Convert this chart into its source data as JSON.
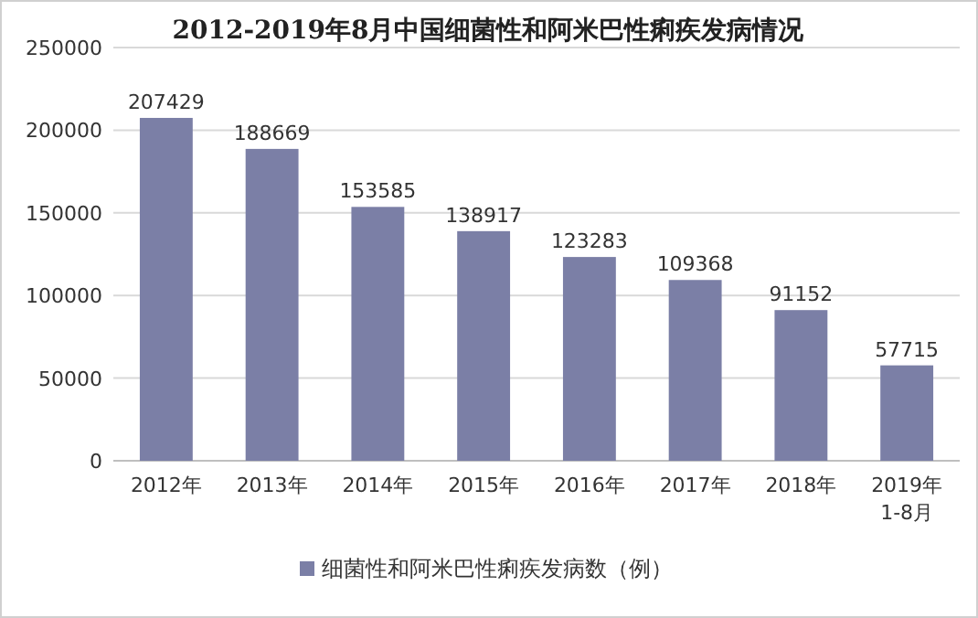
{
  "chart_data": {
    "type": "bar",
    "title": "2012-2019年8月中国细菌性和阿米巴性痢疾发病情况",
    "categories": [
      "2012年",
      "2013年",
      "2014年",
      "2015年",
      "2016年",
      "2017年",
      "2018年",
      "2019年\n1-8月"
    ],
    "series": [
      {
        "name": "细菌性和阿米巴性痢疾发病数（例）",
        "color": "#7b7fa6",
        "values": [
          207429,
          188669,
          153585,
          138917,
          123283,
          109368,
          91152,
          57715
        ]
      }
    ],
    "ylim": [
      0,
      250000
    ],
    "yticks": [
      0,
      50000,
      100000,
      150000,
      200000,
      250000
    ],
    "grid": "y",
    "data_labels": true,
    "legend": "bottom"
  }
}
